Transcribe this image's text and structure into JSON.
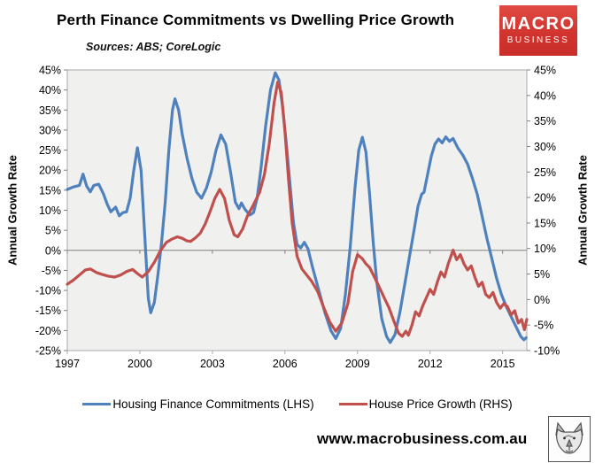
{
  "header": {
    "title": "Perth Finance Commitments vs Dwelling Price Growth",
    "subtitle": "Sources: ABS; CoreLogic",
    "logo": {
      "line1": "MACRO",
      "line2": "BUSINESS",
      "bg_color": "#d0332d",
      "text_color": "#ffffff"
    }
  },
  "footer": {
    "website": "www.macrobusiness.com.au",
    "wolf_icon": "wolf-logo"
  },
  "chart_data": {
    "type": "line",
    "title": "Perth Finance Commitments vs Dwelling Price Growth",
    "plot_bg": "#f0f0ef",
    "frame_color": "#a9a9a9",
    "zero_line": true,
    "zero_line_color": "#808080",
    "grid": false,
    "legend_position": "bottom",
    "x_axis": {
      "min": 1997,
      "max": 2016,
      "tick_years": [
        1997,
        2000,
        2003,
        2006,
        2009,
        2012,
        2015
      ]
    },
    "left_axis": {
      "label": "Annual Growth Rate",
      "min": -25,
      "max": 45,
      "step": 5,
      "suffix": "%"
    },
    "right_axis": {
      "label": "Annual Growth Rate",
      "min": -10,
      "max": 45,
      "step": 5,
      "suffix": "%"
    },
    "series": [
      {
        "name": "Housing Finance Commitments (LHS)",
        "axis": "left",
        "color": "#4f81bd",
        "points": [
          [
            1997.0,
            15.2
          ],
          [
            1997.25,
            15.8
          ],
          [
            1997.5,
            16.2
          ],
          [
            1997.65,
            19.0
          ],
          [
            1997.8,
            16.0
          ],
          [
            1997.95,
            14.6
          ],
          [
            1998.1,
            16.2
          ],
          [
            1998.3,
            16.5
          ],
          [
            1998.5,
            14.0
          ],
          [
            1998.65,
            11.5
          ],
          [
            1998.8,
            9.6
          ],
          [
            1999.0,
            10.8
          ],
          [
            1999.15,
            8.6
          ],
          [
            1999.3,
            9.4
          ],
          [
            1999.45,
            9.6
          ],
          [
            1999.6,
            13.0
          ],
          [
            1999.75,
            20.0
          ],
          [
            1999.9,
            25.6
          ],
          [
            2000.05,
            20.0
          ],
          [
            2000.2,
            4.0
          ],
          [
            2000.35,
            -12.0
          ],
          [
            2000.45,
            -15.6
          ],
          [
            2000.6,
            -13.0
          ],
          [
            2000.75,
            -6.0
          ],
          [
            2000.9,
            2.0
          ],
          [
            2001.05,
            12.0
          ],
          [
            2001.2,
            25.0
          ],
          [
            2001.35,
            35.0
          ],
          [
            2001.45,
            37.8
          ],
          [
            2001.6,
            35.0
          ],
          [
            2001.75,
            29.0
          ],
          [
            2001.95,
            23.0
          ],
          [
            2002.15,
            18.0
          ],
          [
            2002.35,
            14.5
          ],
          [
            2002.55,
            13.0
          ],
          [
            2002.75,
            15.5
          ],
          [
            2002.95,
            19.5
          ],
          [
            2003.15,
            25.0
          ],
          [
            2003.35,
            28.8
          ],
          [
            2003.55,
            26.5
          ],
          [
            2003.75,
            19.5
          ],
          [
            2003.95,
            12.0
          ],
          [
            2004.1,
            10.4
          ],
          [
            2004.2,
            11.8
          ],
          [
            2004.35,
            10.2
          ],
          [
            2004.55,
            8.8
          ],
          [
            2004.7,
            9.4
          ],
          [
            2004.85,
            13.0
          ],
          [
            2005.0,
            20.0
          ],
          [
            2005.2,
            31.0
          ],
          [
            2005.4,
            40.0
          ],
          [
            2005.6,
            44.3
          ],
          [
            2005.75,
            42.5
          ],
          [
            2005.9,
            36.0
          ],
          [
            2006.05,
            27.0
          ],
          [
            2006.2,
            17.0
          ],
          [
            2006.35,
            7.0
          ],
          [
            2006.5,
            1.5
          ],
          [
            2006.65,
            0.6
          ],
          [
            2006.8,
            2.0
          ],
          [
            2006.95,
            0.4
          ],
          [
            2007.15,
            -4.5
          ],
          [
            2007.4,
            -10.0
          ],
          [
            2007.65,
            -15.5
          ],
          [
            2007.9,
            -20.0
          ],
          [
            2008.1,
            -22.0
          ],
          [
            2008.3,
            -19.5
          ],
          [
            2008.5,
            -11.0
          ],
          [
            2008.7,
            1.0
          ],
          [
            2008.9,
            16.0
          ],
          [
            2009.05,
            25.0
          ],
          [
            2009.2,
            28.2
          ],
          [
            2009.35,
            24.5
          ],
          [
            2009.5,
            14.0
          ],
          [
            2009.65,
            2.0
          ],
          [
            2009.8,
            -8.0
          ],
          [
            2010.0,
            -17.0
          ],
          [
            2010.2,
            -21.5
          ],
          [
            2010.35,
            -23.0
          ],
          [
            2010.55,
            -21.0
          ],
          [
            2010.75,
            -15.5
          ],
          [
            2010.95,
            -8.5
          ],
          [
            2011.15,
            -1.5
          ],
          [
            2011.35,
            5.5
          ],
          [
            2011.5,
            11.0
          ],
          [
            2011.65,
            14.0
          ],
          [
            2011.75,
            14.5
          ],
          [
            2011.9,
            19.0
          ],
          [
            2012.05,
            23.5
          ],
          [
            2012.2,
            26.5
          ],
          [
            2012.35,
            27.8
          ],
          [
            2012.5,
            26.8
          ],
          [
            2012.65,
            28.3
          ],
          [
            2012.8,
            27.2
          ],
          [
            2012.95,
            27.9
          ],
          [
            2013.15,
            25.5
          ],
          [
            2013.35,
            23.8
          ],
          [
            2013.55,
            21.5
          ],
          [
            2013.75,
            18.0
          ],
          [
            2013.95,
            14.0
          ],
          [
            2014.15,
            8.5
          ],
          [
            2014.35,
            3.0
          ],
          [
            2014.55,
            -2.0
          ],
          [
            2014.75,
            -7.0
          ],
          [
            2014.95,
            -11.0
          ],
          [
            2015.15,
            -14.0
          ],
          [
            2015.35,
            -16.5
          ],
          [
            2015.55,
            -19.0
          ],
          [
            2015.75,
            -21.5
          ],
          [
            2015.88,
            -22.3
          ],
          [
            2015.97,
            -21.8
          ]
        ]
      },
      {
        "name": "House Price Growth (RHS)",
        "axis": "right",
        "color": "#c0504d",
        "points": [
          [
            1997.0,
            3.0
          ],
          [
            1997.25,
            3.8
          ],
          [
            1997.5,
            4.8
          ],
          [
            1997.75,
            5.8
          ],
          [
            1997.95,
            6.0
          ],
          [
            1998.2,
            5.3
          ],
          [
            1998.45,
            4.9
          ],
          [
            1998.7,
            4.6
          ],
          [
            1998.95,
            4.4
          ],
          [
            1999.2,
            4.8
          ],
          [
            1999.45,
            5.5
          ],
          [
            1999.7,
            5.9
          ],
          [
            1999.9,
            5.1
          ],
          [
            2000.1,
            4.4
          ],
          [
            2000.35,
            5.5
          ],
          [
            2000.6,
            7.3
          ],
          [
            2000.85,
            9.6
          ],
          [
            2001.1,
            11.2
          ],
          [
            2001.35,
            11.9
          ],
          [
            2001.55,
            12.3
          ],
          [
            2001.75,
            12.0
          ],
          [
            2001.95,
            11.5
          ],
          [
            2002.1,
            11.4
          ],
          [
            2002.3,
            12.1
          ],
          [
            2002.5,
            13.0
          ],
          [
            2002.7,
            14.8
          ],
          [
            2002.9,
            17.2
          ],
          [
            2003.1,
            19.8
          ],
          [
            2003.3,
            21.6
          ],
          [
            2003.5,
            19.8
          ],
          [
            2003.7,
            15.5
          ],
          [
            2003.9,
            12.7
          ],
          [
            2004.05,
            12.3
          ],
          [
            2004.25,
            13.8
          ],
          [
            2004.45,
            16.4
          ],
          [
            2004.7,
            18.6
          ],
          [
            2004.95,
            21.0
          ],
          [
            2005.15,
            24.5
          ],
          [
            2005.35,
            30.5
          ],
          [
            2005.55,
            38.5
          ],
          [
            2005.7,
            42.6
          ],
          [
            2005.85,
            40.5
          ],
          [
            2006.0,
            33.0
          ],
          [
            2006.15,
            23.5
          ],
          [
            2006.3,
            15.0
          ],
          [
            2006.5,
            8.5
          ],
          [
            2006.7,
            6.0
          ],
          [
            2006.9,
            4.8
          ],
          [
            2007.1,
            3.6
          ],
          [
            2007.35,
            1.6
          ],
          [
            2007.6,
            -1.5
          ],
          [
            2007.85,
            -4.4
          ],
          [
            2008.1,
            -6.2
          ],
          [
            2008.35,
            -4.6
          ],
          [
            2008.6,
            -0.8
          ],
          [
            2008.8,
            5.5
          ],
          [
            2009.0,
            8.8
          ],
          [
            2009.2,
            8.0
          ],
          [
            2009.35,
            7.0
          ],
          [
            2009.5,
            6.3
          ],
          [
            2009.7,
            4.4
          ],
          [
            2009.9,
            2.4
          ],
          [
            2010.1,
            0.4
          ],
          [
            2010.3,
            -1.6
          ],
          [
            2010.5,
            -4.2
          ],
          [
            2010.7,
            -6.6
          ],
          [
            2010.85,
            -7.2
          ],
          [
            2011.0,
            -6.2
          ],
          [
            2011.1,
            -7.0
          ],
          [
            2011.25,
            -5.0
          ],
          [
            2011.4,
            -2.4
          ],
          [
            2011.55,
            -3.2
          ],
          [
            2011.7,
            -1.2
          ],
          [
            2011.85,
            0.4
          ],
          [
            2012.0,
            2.0
          ],
          [
            2012.15,
            1.0
          ],
          [
            2012.3,
            3.4
          ],
          [
            2012.45,
            5.4
          ],
          [
            2012.6,
            4.4
          ],
          [
            2012.75,
            7.0
          ],
          [
            2012.95,
            9.7
          ],
          [
            2013.1,
            7.8
          ],
          [
            2013.25,
            8.8
          ],
          [
            2013.4,
            7.0
          ],
          [
            2013.55,
            5.8
          ],
          [
            2013.7,
            6.6
          ],
          [
            2013.85,
            4.4
          ],
          [
            2014.0,
            2.6
          ],
          [
            2014.15,
            3.4
          ],
          [
            2014.3,
            1.0
          ],
          [
            2014.45,
            0.4
          ],
          [
            2014.6,
            1.4
          ],
          [
            2014.75,
            -0.6
          ],
          [
            2014.9,
            -1.7
          ],
          [
            2015.05,
            -0.8
          ],
          [
            2015.2,
            -1.4
          ],
          [
            2015.35,
            -3.0
          ],
          [
            2015.5,
            -2.2
          ],
          [
            2015.65,
            -4.6
          ],
          [
            2015.78,
            -3.9
          ],
          [
            2015.9,
            -5.9
          ],
          [
            2016.0,
            -3.9
          ]
        ]
      }
    ]
  }
}
